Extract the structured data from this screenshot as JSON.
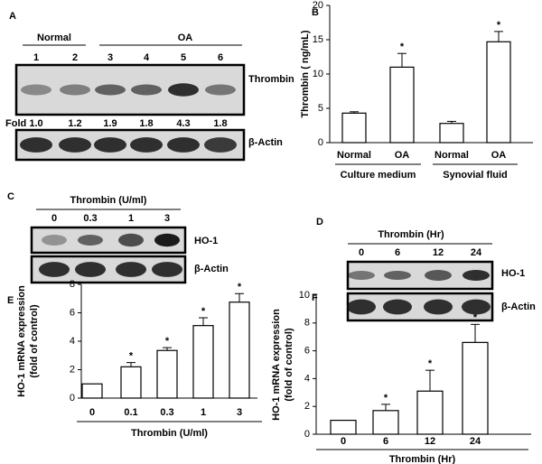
{
  "panel_letters": [
    "A",
    "B",
    "C",
    "D",
    "E",
    "F"
  ],
  "blot_a": {
    "groups": [
      "Normal",
      "OA"
    ],
    "lanes": [
      "1",
      "2",
      "3",
      "4",
      "5",
      "6"
    ],
    "rows": [
      "Thrombin",
      "β-Actin"
    ],
    "fold_label": "Fold",
    "fold": [
      "1.0",
      "1.2",
      "1.9",
      "1.8",
      "4.3",
      "1.8"
    ]
  },
  "blot_c": {
    "title": "Thrombin (U/ml)",
    "lanes": [
      "0",
      "0.3",
      "1",
      "3"
    ],
    "rows": [
      "HO-1",
      "β-Actin"
    ]
  },
  "blot_d": {
    "title": "Thrombin (Hr)",
    "lanes": [
      "0",
      "6",
      "12",
      "24"
    ],
    "rows": [
      "HO-1",
      "β-Actin"
    ]
  },
  "chart_data": [
    {
      "type": "bar",
      "y_label": "Thrombin ( ng/mL)",
      "categories": [
        "Normal",
        "OA",
        "Normal",
        "OA"
      ],
      "groups": [
        "Culture medium",
        "Synovial fluid"
      ],
      "values": [
        4.3,
        11,
        2.8,
        14.7
      ],
      "errors": [
        0.2,
        2,
        0.3,
        1.5
      ],
      "significance": [
        null,
        "*",
        null,
        "*"
      ],
      "color": "#ffffff",
      "ylim": [
        0,
        20
      ],
      "yticks": [
        0,
        5,
        10,
        15,
        20
      ]
    },
    {
      "type": "bar",
      "y_label": [
        "HO-1 mRNA expression",
        "(fold of control)"
      ],
      "x_label": "Thrombin (U/ml)",
      "categories": [
        "0",
        "0.1",
        "0.3",
        "1",
        "3"
      ],
      "values": [
        1,
        2.2,
        3.35,
        5.1,
        6.75
      ],
      "errors": [
        0,
        0.3,
        0.2,
        0.55,
        0.6
      ],
      "significance": [
        null,
        "*",
        "*",
        "*",
        "*"
      ],
      "color": "#ffffff",
      "ylim": [
        0,
        8
      ],
      "yticks": [
        0,
        2,
        4,
        6,
        8
      ]
    },
    {
      "type": "bar",
      "y_label": [
        "HO-1 mRNA expression",
        "(fold of control)"
      ],
      "x_label": "Thrombin (Hr)",
      "categories": [
        "0",
        "6",
        "12",
        "24"
      ],
      "values": [
        1,
        1.7,
        3.1,
        6.6
      ],
      "errors": [
        0,
        0.45,
        1.5,
        1.3
      ],
      "significance": [
        null,
        "*",
        "*",
        "*"
      ],
      "color": "#ffffff",
      "ylim": [
        0,
        10
      ],
      "yticks": [
        0,
        2,
        4,
        6,
        8,
        10
      ]
    }
  ]
}
